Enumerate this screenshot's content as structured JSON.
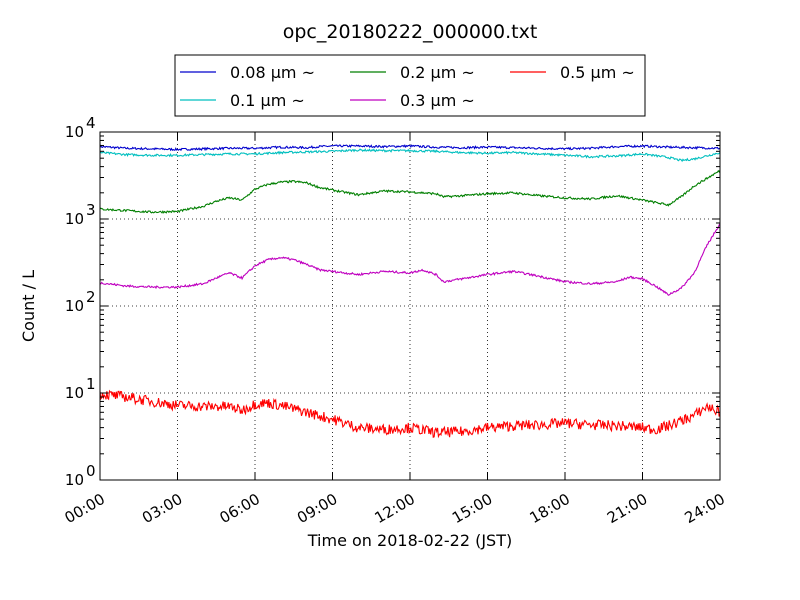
{
  "chart_data": {
    "type": "line",
    "title": "opc_20180222_000000.txt",
    "xlabel": "Time on 2018-02-22 (JST)",
    "ylabel": "Count / L",
    "x_ticks": [
      "00:00",
      "03:00",
      "06:00",
      "09:00",
      "12:00",
      "15:00",
      "18:00",
      "21:00",
      "24:00"
    ],
    "y_ticks": [
      {
        "base": "10",
        "exp": "0"
      },
      {
        "base": "10",
        "exp": "1"
      },
      {
        "base": "10",
        "exp": "2"
      },
      {
        "base": "10",
        "exp": "3"
      },
      {
        "base": "10",
        "exp": "4"
      }
    ],
    "x_range_hours": [
      0,
      24
    ],
    "ylim": [
      1,
      10000
    ],
    "yscale": "log",
    "grid": true,
    "legend_position": "top-center",
    "series": [
      {
        "name": "0.08 μm ~",
        "color": "#0000cc",
        "x": [
          0,
          1,
          2,
          3,
          4,
          5,
          6,
          7,
          8,
          8.5,
          9,
          10,
          11,
          12,
          13,
          14,
          15,
          16,
          17,
          18,
          19,
          20,
          21,
          22,
          23,
          24
        ],
        "y": [
          6800,
          6500,
          6400,
          6300,
          6400,
          6500,
          6500,
          6700,
          6600,
          6800,
          6900,
          6900,
          6800,
          6900,
          6700,
          6600,
          6700,
          6600,
          6500,
          6400,
          6500,
          6800,
          6900,
          6700,
          6600,
          6500
        ]
      },
      {
        "name": "0.1 μm ~",
        "color": "#00bfbf",
        "x": [
          0,
          1,
          2,
          3,
          4,
          5,
          6,
          7,
          8,
          9,
          10,
          11,
          12,
          13,
          14,
          15,
          16,
          17,
          18,
          19,
          20,
          21,
          22,
          22.5,
          23,
          24
        ],
        "y": [
          5800,
          5500,
          5400,
          5400,
          5500,
          5600,
          5600,
          5800,
          5900,
          6000,
          6200,
          6100,
          6100,
          6000,
          5800,
          5700,
          5800,
          5600,
          5400,
          5200,
          5300,
          5600,
          5100,
          4700,
          4900,
          5800
        ]
      },
      {
        "name": "0.2 μm ~",
        "color": "#007f00",
        "x": [
          0,
          1,
          2,
          3,
          4,
          4.5,
          5,
          5.5,
          6,
          6.5,
          7,
          7.5,
          8,
          8.5,
          9,
          10,
          11,
          12,
          13,
          13.3,
          14,
          15,
          16,
          17,
          18,
          19,
          20,
          21,
          21.5,
          22,
          22.5,
          23,
          24
        ],
        "y": [
          1300,
          1250,
          1200,
          1220,
          1400,
          1600,
          1750,
          1650,
          2200,
          2500,
          2650,
          2700,
          2600,
          2300,
          2150,
          1900,
          2100,
          2050,
          1950,
          1800,
          1850,
          1950,
          2000,
          1850,
          1750,
          1700,
          1850,
          1650,
          1550,
          1450,
          1800,
          2400,
          3600
        ]
      },
      {
        "name": "0.3 μm ~",
        "color": "#bf00bf",
        "x": [
          0,
          1,
          2,
          3,
          4,
          4.5,
          5,
          5.5,
          6,
          6.5,
          7,
          7.5,
          8,
          8.5,
          9,
          10,
          11,
          12,
          12.5,
          13,
          13.3,
          14,
          15,
          16,
          17,
          18,
          19,
          20,
          20.5,
          21,
          21.5,
          22,
          22.5,
          23,
          23.5,
          24
        ],
        "y": [
          185,
          170,
          165,
          165,
          180,
          210,
          240,
          210,
          290,
          340,
          360,
          340,
          300,
          260,
          250,
          230,
          250,
          240,
          260,
          230,
          190,
          205,
          230,
          250,
          220,
          190,
          180,
          190,
          215,
          205,
          170,
          135,
          160,
          240,
          500,
          880
        ]
      },
      {
        "name": "0.5 μm ~",
        "color": "#ff0000",
        "x": [
          0,
          1,
          2,
          3,
          4,
          5,
          5.5,
          6,
          6.5,
          7,
          8,
          9,
          10,
          11,
          12,
          13,
          14,
          15,
          16,
          17,
          18,
          19,
          20,
          21,
          21.5,
          22,
          23,
          23.5,
          24
        ],
        "y": [
          9.8,
          9,
          8,
          7.2,
          7,
          7,
          6.3,
          7.5,
          7.7,
          7.2,
          6,
          5,
          4,
          3.8,
          4,
          3.5,
          3.6,
          4,
          4.2,
          4.3,
          4.5,
          4.3,
          4.2,
          4,
          3.8,
          4.2,
          5.5,
          7,
          6
        ]
      }
    ],
    "legend_order": [
      0,
      2,
      4,
      1,
      3
    ]
  }
}
